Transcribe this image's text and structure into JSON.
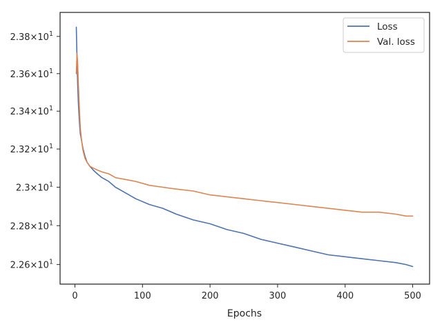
{
  "chart_data": {
    "type": "line",
    "title": "",
    "xlabel": "Epochs",
    "ylabel": "",
    "yscale": "log",
    "xlim": [
      -22,
      525
    ],
    "ylim": [
      22.5,
      23.93
    ],
    "xticks": [
      0,
      100,
      200,
      300,
      400,
      500
    ],
    "xtick_labels": [
      "0",
      "100",
      "200",
      "300",
      "400",
      "500"
    ],
    "ytick_values": [
      22.6,
      22.8,
      23.0,
      23.2,
      23.4,
      23.6,
      23.8
    ],
    "ytick_labels": [
      {
        "mantissa": "2.26",
        "exponent": "1"
      },
      {
        "mantissa": "2.28",
        "exponent": "1"
      },
      {
        "mantissa": "2.3",
        "exponent": "1"
      },
      {
        "mantissa": "2.32",
        "exponent": "1"
      },
      {
        "mantissa": "2.34",
        "exponent": "1"
      },
      {
        "mantissa": "2.36",
        "exponent": "1"
      },
      {
        "mantissa": "2.38",
        "exponent": "1"
      }
    ],
    "times_symbol": "×",
    "base": "10",
    "grid": false,
    "legend_position": "top-right",
    "series": [
      {
        "name": "Loss",
        "color": "#4c72b0",
        "x": [
          2,
          3,
          4,
          5,
          6,
          7,
          8,
          10,
          12,
          15,
          18,
          22,
          27,
          33,
          40,
          50,
          60,
          75,
          90,
          110,
          130,
          150,
          175,
          200,
          225,
          250,
          275,
          300,
          325,
          350,
          375,
          400,
          425,
          450,
          475,
          490,
          500
        ],
        "values": [
          23.85,
          23.68,
          23.55,
          23.45,
          23.38,
          23.32,
          23.28,
          23.24,
          23.2,
          23.16,
          23.13,
          23.11,
          23.09,
          23.07,
          23.05,
          23.03,
          23.0,
          22.97,
          22.94,
          22.91,
          22.89,
          22.86,
          22.83,
          22.81,
          22.78,
          22.76,
          22.73,
          22.71,
          22.69,
          22.67,
          22.65,
          22.64,
          22.63,
          22.62,
          22.61,
          22.6,
          22.59
        ]
      },
      {
        "name": "Val. loss",
        "color": "#dd8452",
        "x": [
          2,
          3,
          4,
          5,
          6,
          7,
          8,
          10,
          12,
          15,
          18,
          22,
          27,
          33,
          40,
          50,
          60,
          75,
          90,
          110,
          130,
          150,
          175,
          200,
          225,
          250,
          275,
          300,
          325,
          350,
          375,
          400,
          425,
          450,
          475,
          490,
          500
        ],
        "values": [
          23.6,
          23.71,
          23.66,
          23.55,
          23.46,
          23.38,
          23.31,
          23.24,
          23.19,
          23.15,
          23.13,
          23.11,
          23.1,
          23.09,
          23.08,
          23.07,
          23.05,
          23.04,
          23.03,
          23.01,
          23.0,
          22.99,
          22.98,
          22.96,
          22.95,
          22.94,
          22.93,
          22.92,
          22.91,
          22.9,
          22.89,
          22.88,
          22.87,
          22.87,
          22.86,
          22.85,
          22.85
        ]
      }
    ]
  }
}
